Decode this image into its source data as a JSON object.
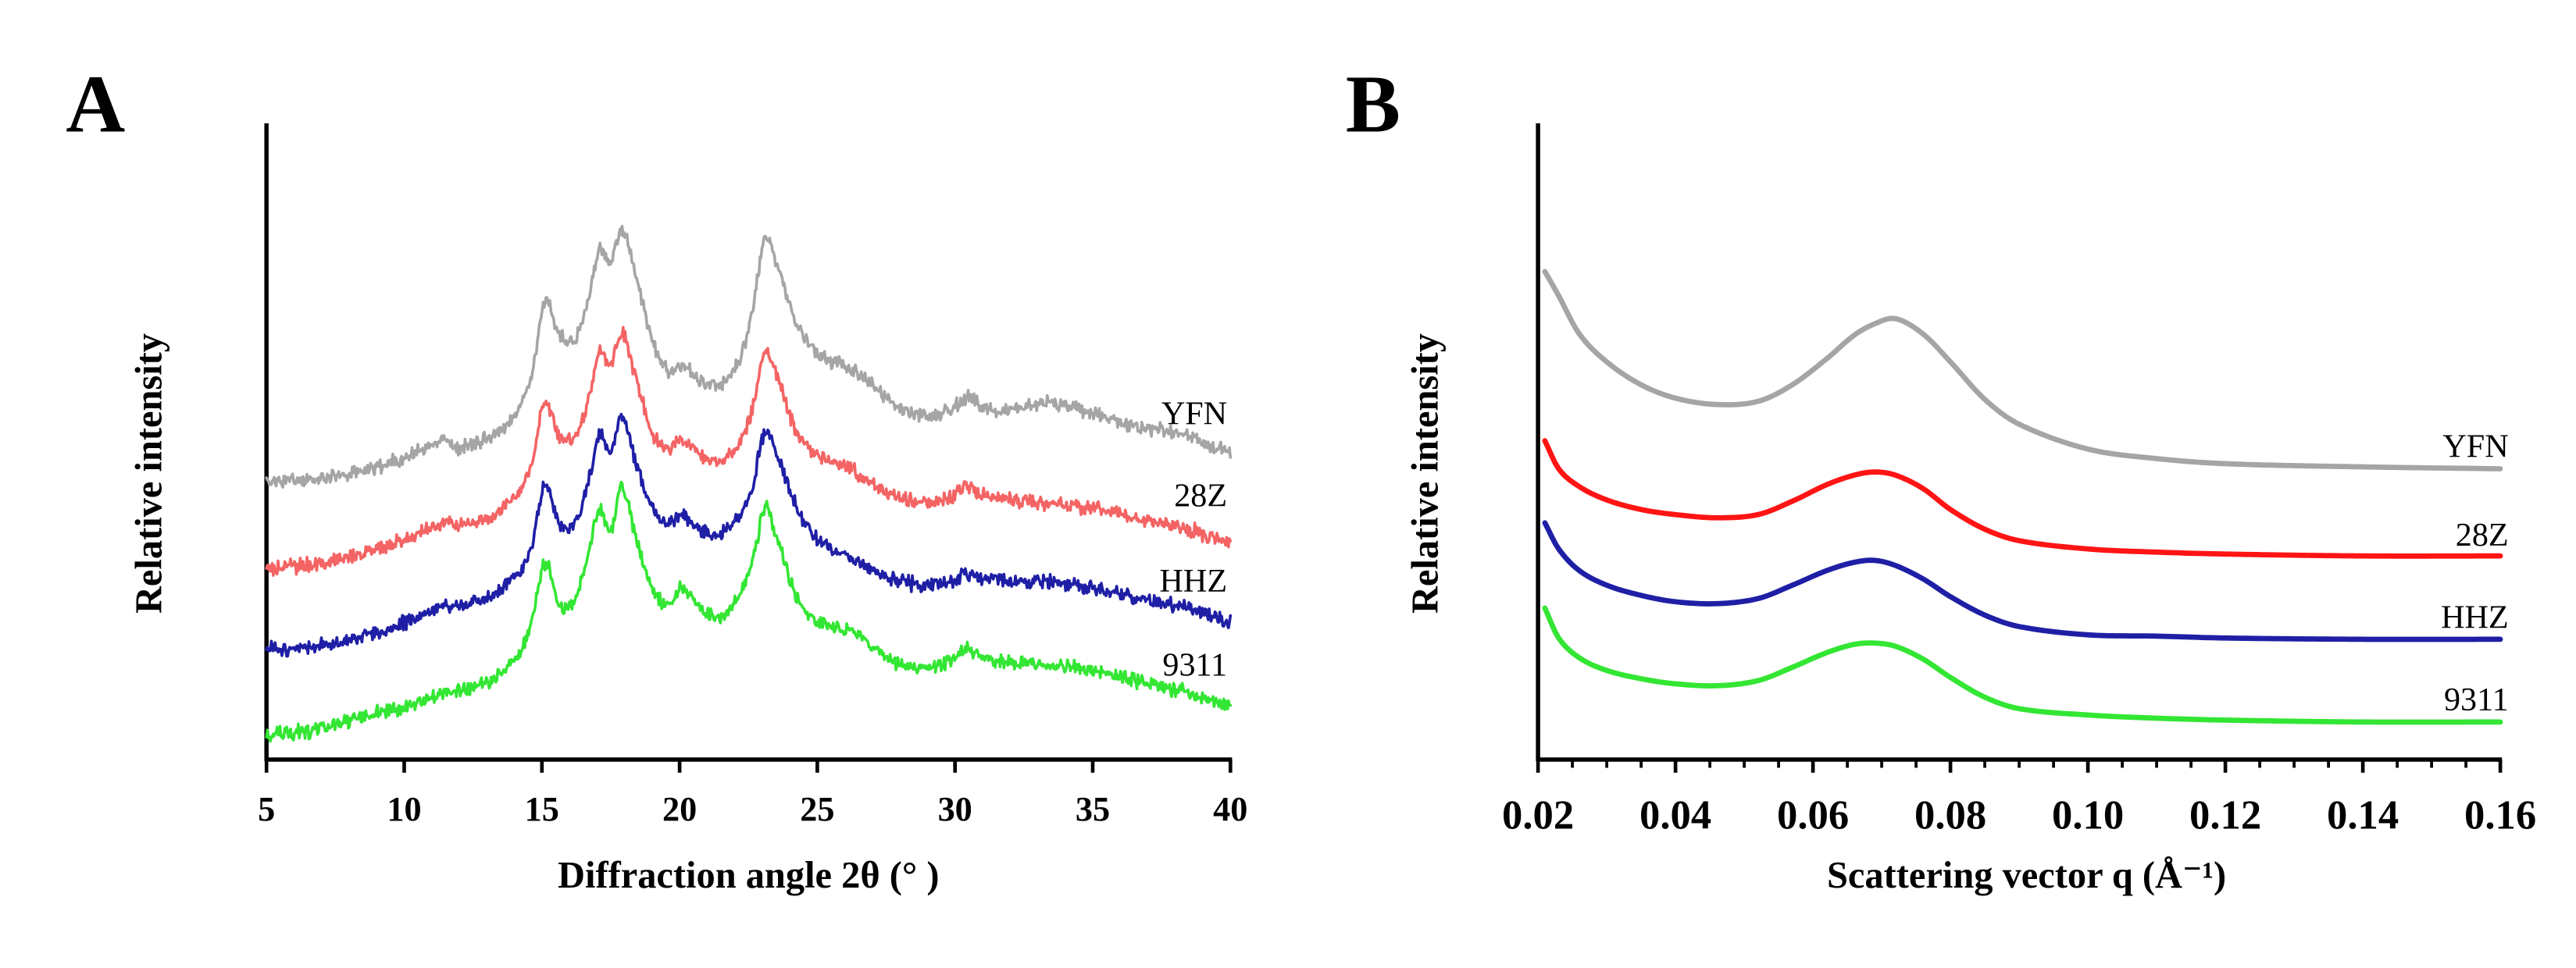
{
  "chart_data": [
    {
      "panel": "A",
      "type": "line",
      "title": "",
      "xlabel": "Diffraction angle 2θ (° )",
      "ylabel": "Relative intensity",
      "xlim": [
        5,
        40
      ],
      "ylim": [
        0,
        100
      ],
      "x_ticks": [
        5,
        10,
        15,
        20,
        25,
        30,
        35,
        40
      ],
      "x_tick_labels": [
        "5",
        "10",
        "15",
        "20",
        "25",
        "30",
        "35",
        "40"
      ],
      "grid": false,
      "legend": "right",
      "x": [
        5,
        6,
        7,
        8,
        9,
        10,
        11,
        11.5,
        12,
        13,
        14,
        14.6,
        15.1,
        15.6,
        16.2,
        16.7,
        17.1,
        17.5,
        17.9,
        18.4,
        19,
        19.6,
        20.1,
        20.8,
        21.5,
        22.2,
        22.7,
        23.1,
        23.6,
        24.2,
        25,
        25.8,
        26.5,
        27.2,
        28,
        29,
        30,
        30.4,
        31,
        32,
        33,
        34,
        35,
        36,
        37,
        38,
        39,
        40
      ],
      "series": [
        {
          "name": "YFN",
          "color": "#a5a5a5",
          "values": [
            43.7,
            43.9,
            44.2,
            44.8,
            46,
            47.5,
            49.5,
            50.2,
            49,
            50.5,
            54,
            60,
            72,
            67,
            66,
            73,
            80,
            78,
            83.5,
            76,
            66,
            61,
            62,
            59.5,
            59,
            63,
            72,
            82,
            77,
            69,
            64,
            62,
            60.5,
            58,
            55,
            54,
            55.5,
            57,
            55.5,
            55,
            56,
            55.5,
            54.5,
            53,
            52,
            51.5,
            50,
            48
          ]
        },
        {
          "name": "28Z",
          "color": "#f46464",
          "values": [
            30.2,
            30.4,
            30.8,
            31.8,
            33,
            34.6,
            36.5,
            37.4,
            36.8,
            38,
            41.5,
            46,
            56,
            51,
            50.5,
            57,
            64,
            62,
            67,
            60,
            51.5,
            49,
            50.5,
            48,
            47,
            50,
            56,
            64,
            59.5,
            52,
            48,
            46.5,
            45,
            43,
            41,
            40.5,
            41.5,
            43,
            41.5,
            40.8,
            40.3,
            40,
            39.5,
            38.5,
            37.5,
            36.8,
            35.5,
            33.8
          ]
        },
        {
          "name": "HHZ",
          "color": "#1f1fa6",
          "values": [
            17.3,
            17.5,
            17.9,
            18.8,
            20,
            21.5,
            23.5,
            24.3,
            24,
            25.3,
            28.5,
            33,
            43,
            37.5,
            37,
            44,
            51,
            48,
            54,
            47,
            39.5,
            37,
            38.5,
            36,
            35.5,
            38.5,
            44,
            51.5,
            47,
            40,
            34.5,
            32.5,
            31,
            29.5,
            28,
            27.5,
            28.2,
            29.2,
            28.5,
            28.2,
            28,
            27.6,
            27,
            26,
            25,
            24.3,
            23,
            21.3
          ]
        },
        {
          "name": "9311",
          "color": "#33e633",
          "values": [
            3.9,
            4.2,
            4.9,
            6,
            7.2,
            8.2,
            9.8,
            10.5,
            10.8,
            12.3,
            15.5,
            21,
            31,
            24.5,
            25,
            33,
            39.5,
            36,
            42.5,
            35,
            27,
            24.5,
            27,
            23.5,
            22.5,
            26,
            32,
            39.5,
            34,
            26,
            21.5,
            20.5,
            19.5,
            17,
            15,
            14.5,
            15.8,
            17.3,
            16,
            15.3,
            15,
            14.6,
            14,
            13,
            12,
            11,
            9.8,
            8.2
          ]
        }
      ]
    },
    {
      "panel": "B",
      "type": "line",
      "title": "",
      "xlabel": "Scattering vector q (Å⁻¹)",
      "ylabel": "Relative intensity",
      "xlim": [
        0.02,
        0.16
      ],
      "ylim": [
        0,
        100
      ],
      "x_ticks": [
        0.02,
        0.04,
        0.06,
        0.08,
        0.1,
        0.12,
        0.14,
        0.16
      ],
      "x_tick_labels": [
        "0.02",
        "0.04",
        "0.06",
        "0.08",
        "0.10",
        "0.12",
        "0.14",
        "0.16"
      ],
      "x_minor_tick_step": 0.005,
      "grid": false,
      "legend": "right",
      "x": [
        0.021,
        0.023,
        0.026,
        0.03,
        0.035,
        0.04,
        0.046,
        0.052,
        0.057,
        0.062,
        0.066,
        0.069,
        0.072,
        0.076,
        0.08,
        0.085,
        0.09,
        0.1,
        0.11,
        0.12,
        0.14,
        0.16
      ],
      "series": [
        {
          "name": "YFN",
          "color": "#a5a5a5",
          "values": [
            76.7,
            72.9,
            66.9,
            62.5,
            58.9,
            56.8,
            55.8,
            56.3,
            58.9,
            63,
            66.7,
            68.5,
            69.3,
            66.9,
            62.5,
            56.6,
            52.7,
            48.8,
            47.3,
            46.5,
            46,
            45.7
          ]
        },
        {
          "name": "28Z",
          "color": "#ff1414",
          "values": [
            50.1,
            45.7,
            42.9,
            40.8,
            39.3,
            38.5,
            38,
            38.5,
            40.6,
            43.2,
            44.7,
            45.2,
            44.7,
            42.6,
            39.3,
            36.2,
            34.4,
            33.1,
            32.6,
            32.3,
            32,
            32
          ]
        },
        {
          "name": "HHZ",
          "color": "#1f1fa6",
          "values": [
            37.2,
            33.1,
            29.7,
            27.4,
            25.8,
            24.8,
            24.5,
            25.3,
            27.4,
            29.7,
            31,
            31.3,
            30.5,
            28.4,
            25.6,
            22.7,
            20.9,
            19.6,
            19.4,
            19.1,
            18.9,
            18.9
          ]
        },
        {
          "name": "9311",
          "color": "#33e633",
          "values": [
            23.8,
            19.1,
            16,
            14,
            12.7,
            11.9,
            11.6,
            12.4,
            14.5,
            16.8,
            18.1,
            18.3,
            17.8,
            15.8,
            12.9,
            9.8,
            8,
            7,
            6.5,
            6.2,
            5.9,
            5.9
          ]
        }
      ]
    }
  ]
}
